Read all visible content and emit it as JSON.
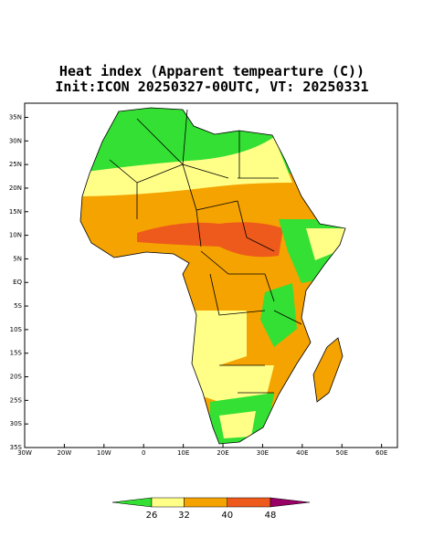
{
  "map": {
    "title": "Heat index (Apparent tempearture (C))",
    "subtitle": "Init:ICON 20250327-00UTC, VT: 20250331",
    "xlim": [
      -30,
      64
    ],
    "ylim": [
      -35,
      38
    ],
    "xticks": [
      {
        "value": -30,
        "label": "30W"
      },
      {
        "value": -20,
        "label": "20W"
      },
      {
        "value": -10,
        "label": "10W"
      },
      0,
      {
        "value": 10,
        "label": "10E"
      },
      {
        "value": 20,
        "label": "20E"
      },
      {
        "value": 30,
        "label": "30E"
      },
      {
        "value": 40,
        "label": "40E"
      },
      {
        "value": 50,
        "label": "50E"
      },
      {
        "value": 60,
        "label": "60E"
      }
    ],
    "yticks": [
      {
        "value": 35,
        "label": "35N"
      },
      {
        "value": 30,
        "label": "30N"
      },
      {
        "value": 25,
        "label": "25N"
      },
      {
        "value": 20,
        "label": "20N"
      },
      {
        "value": 15,
        "label": "15N"
      },
      {
        "value": 10,
        "label": "10N"
      },
      {
        "value": 5,
        "label": "5N"
      },
      {
        "value": 0,
        "label": "EQ"
      },
      {
        "value": -5,
        "label": "5S"
      },
      {
        "value": -10,
        "label": "10S"
      },
      {
        "value": -15,
        "label": "15S"
      },
      {
        "value": -20,
        "label": "20S"
      },
      {
        "value": -25,
        "label": "25S"
      },
      {
        "value": -30,
        "label": "30S"
      },
      {
        "value": -35,
        "label": "35S"
      }
    ],
    "colorbar": {
      "levels": [
        26,
        32,
        40,
        48
      ],
      "colors": [
        "#33e033",
        "#ffff88",
        "#f5a300",
        "#ee5a1c",
        "#990066"
      ]
    }
  }
}
